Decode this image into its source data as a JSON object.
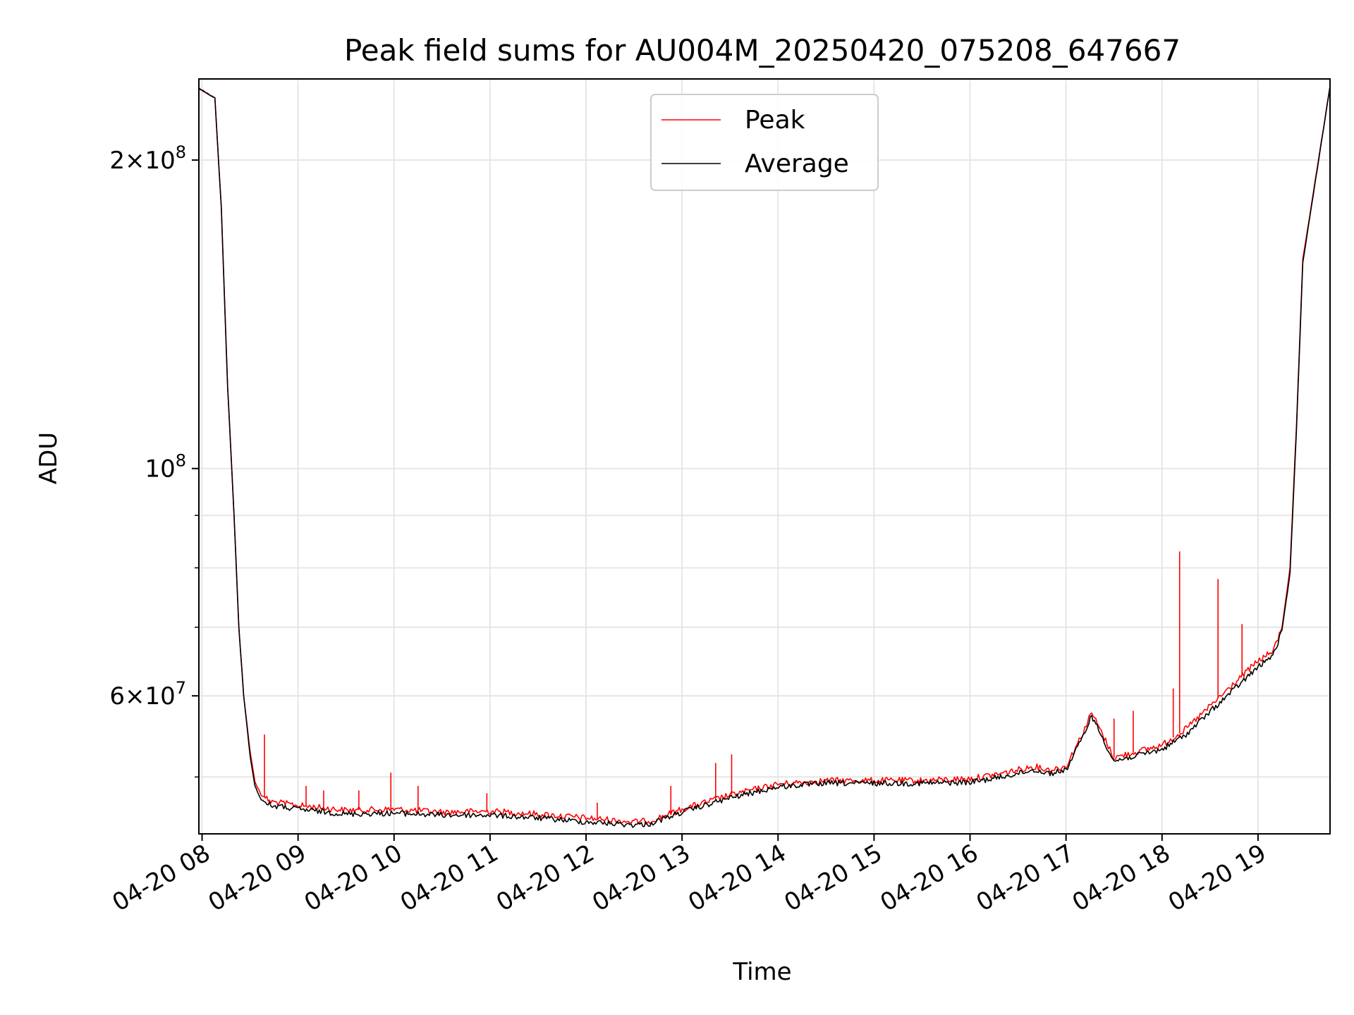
{
  "chart_data": {
    "type": "line",
    "title": "Peak field sums for AU004M_20250420_075208_647667",
    "xlabel": "Time",
    "ylabel": "ADU",
    "yscale": "log",
    "ylim": [
      44000000,
      240000000
    ],
    "xlim": [
      "2025-04-20 07:58",
      "2025-04-20 19:45"
    ],
    "grid": true,
    "legend_position": "upper center",
    "x_tick_labels": [
      "04-20 08",
      "04-20 09",
      "04-20 10",
      "04-20 11",
      "04-20 12",
      "04-20 13",
      "04-20 14",
      "04-20 15",
      "04-20 16",
      "04-20 17",
      "04-20 18",
      "04-20 19"
    ],
    "x_tick_values": [
      "2025-04-20 08:00",
      "2025-04-20 09:00",
      "2025-04-20 10:00",
      "2025-04-20 11:00",
      "2025-04-20 12:00",
      "2025-04-20 13:00",
      "2025-04-20 14:00",
      "2025-04-20 15:00",
      "2025-04-20 16:00",
      "2025-04-20 17:00",
      "2025-04-20 18:00",
      "2025-04-20 19:00"
    ],
    "y_major_ticks": [
      {
        "value": 200000000,
        "mantissa": "2",
        "exponent": "8"
      },
      {
        "value": 100000000,
        "mantissa": "",
        "exponent": "8"
      },
      {
        "value": 60000000,
        "mantissa": "6",
        "exponent": "7"
      }
    ],
    "y_minor_ticks": [
      90000000,
      80000000,
      70000000,
      50000000
    ],
    "series": [
      {
        "name": "Peak",
        "color": "#ff0000",
        "x": [
          "2025-04-20 07:58",
          "2025-04-20 08:08",
          "2025-04-20 08:12",
          "2025-04-20 08:16",
          "2025-04-20 08:20",
          "2025-04-20 08:23",
          "2025-04-20 08:26",
          "2025-04-20 08:30",
          "2025-04-20 08:33",
          "2025-04-20 08:37",
          "2025-04-20 08:43",
          "2025-04-20 09:00",
          "2025-04-20 09:30",
          "2025-04-20 10:00",
          "2025-04-20 10:30",
          "2025-04-20 11:00",
          "2025-04-20 11:30",
          "2025-04-20 12:00",
          "2025-04-20 12:30",
          "2025-04-20 12:40",
          "2025-04-20 13:00",
          "2025-04-20 13:30",
          "2025-04-20 14:00",
          "2025-04-20 14:30",
          "2025-04-20 15:00",
          "2025-04-20 15:30",
          "2025-04-20 16:00",
          "2025-04-20 16:20",
          "2025-04-20 16:40",
          "2025-04-20 16:50",
          "2025-04-20 17:00",
          "2025-04-20 17:10",
          "2025-04-20 17:16",
          "2025-04-20 17:30",
          "2025-04-20 18:00",
          "2025-04-20 18:15",
          "2025-04-20 18:30",
          "2025-04-20 19:00",
          "2025-04-20 19:05",
          "2025-04-20 19:10",
          "2025-04-20 19:15",
          "2025-04-20 19:20",
          "2025-04-20 19:24",
          "2025-04-20 19:28",
          "2025-04-20 19:45"
        ],
        "y": [
          235000000,
          230000000,
          180000000,
          120000000,
          90000000,
          70000000,
          60000000,
          53000000,
          49500000,
          48000000,
          47300000,
          46900000,
          46400000,
          46500000,
          46200000,
          46300000,
          46000000,
          45600000,
          45200000,
          45300000,
          46500000,
          48000000,
          49200000,
          49600000,
          49600000,
          49600000,
          49800000,
          50400000,
          51200000,
          50800000,
          51200000,
          55000000,
          57800000,
          52200000,
          53700000,
          55700000,
          58600000,
          64900000,
          65600000,
          66600000,
          70000000,
          80000000,
          110000000,
          160000000,
          236000000
        ],
        "spikes": [
          {
            "x": "2025-04-20 08:39",
            "y": 55000000
          },
          {
            "x": "2025-04-20 09:05",
            "y": 49000000
          },
          {
            "x": "2025-04-20 09:16",
            "y": 48500000
          },
          {
            "x": "2025-04-20 09:38",
            "y": 48500000
          },
          {
            "x": "2025-04-20 09:58",
            "y": 50500000
          },
          {
            "x": "2025-04-20 10:15",
            "y": 49000000
          },
          {
            "x": "2025-04-20 10:58",
            "y": 48200000
          },
          {
            "x": "2025-04-20 12:07",
            "y": 47200000
          },
          {
            "x": "2025-04-20 12:53",
            "y": 49000000
          },
          {
            "x": "2025-04-20 13:21",
            "y": 51600000
          },
          {
            "x": "2025-04-20 13:31",
            "y": 52600000
          },
          {
            "x": "2025-04-20 17:30",
            "y": 57000000
          },
          {
            "x": "2025-04-20 17:42",
            "y": 58000000
          },
          {
            "x": "2025-04-20 18:07",
            "y": 61000000
          },
          {
            "x": "2025-04-20 18:11",
            "y": 83000000
          },
          {
            "x": "2025-04-20 18:35",
            "y": 78000000
          },
          {
            "x": "2025-04-20 18:50",
            "y": 70500000
          }
        ]
      },
      {
        "name": "Average",
        "color": "#000000",
        "x": [
          "2025-04-20 07:58",
          "2025-04-20 08:08",
          "2025-04-20 08:12",
          "2025-04-20 08:16",
          "2025-04-20 08:20",
          "2025-04-20 08:23",
          "2025-04-20 08:26",
          "2025-04-20 08:30",
          "2025-04-20 08:33",
          "2025-04-20 08:37",
          "2025-04-20 08:43",
          "2025-04-20 09:00",
          "2025-04-20 09:30",
          "2025-04-20 10:00",
          "2025-04-20 10:30",
          "2025-04-20 11:00",
          "2025-04-20 11:30",
          "2025-04-20 12:00",
          "2025-04-20 12:30",
          "2025-04-20 12:40",
          "2025-04-20 13:00",
          "2025-04-20 13:30",
          "2025-04-20 14:00",
          "2025-04-20 14:30",
          "2025-04-20 15:00",
          "2025-04-20 15:30",
          "2025-04-20 16:00",
          "2025-04-20 16:20",
          "2025-04-20 16:40",
          "2025-04-20 16:50",
          "2025-04-20 17:00",
          "2025-04-20 17:10",
          "2025-04-20 17:16",
          "2025-04-20 17:30",
          "2025-04-20 18:00",
          "2025-04-20 18:15",
          "2025-04-20 18:30",
          "2025-04-20 19:00",
          "2025-04-20 19:05",
          "2025-04-20 19:10",
          "2025-04-20 19:15",
          "2025-04-20 19:20",
          "2025-04-20 19:24",
          "2025-04-20 19:28",
          "2025-04-20 19:45"
        ],
        "y": [
          235000000,
          230000000,
          180000000,
          120000000,
          90000000,
          70000000,
          60000000,
          52500000,
          49000000,
          47500000,
          46900000,
          46500000,
          46000000,
          46100000,
          45900000,
          45900000,
          45600000,
          45200000,
          44900000,
          45000000,
          46200000,
          47700000,
          48900000,
          49300000,
          49300000,
          49300000,
          49400000,
          50000000,
          50800000,
          50400000,
          50800000,
          54500000,
          57400000,
          51800000,
          53200000,
          55000000,
          57900000,
          64000000,
          64900000,
          66000000,
          69500000,
          79000000,
          109000000,
          159000000,
          236000000
        ]
      }
    ]
  }
}
